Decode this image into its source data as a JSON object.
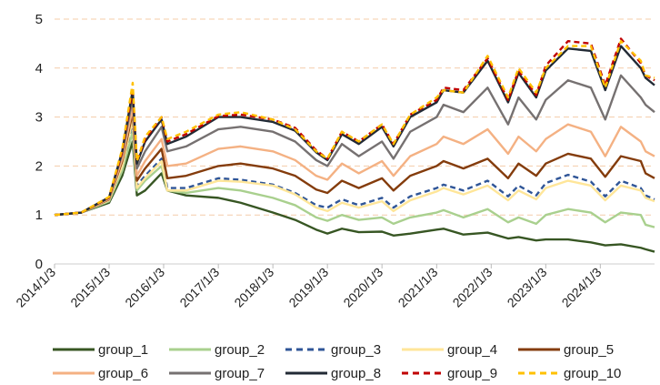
{
  "chart_data": {
    "type": "line",
    "title": "",
    "xlabel": "",
    "ylabel": "",
    "ylim": [
      0,
      5
    ],
    "yticks": [
      "0",
      "1",
      "2",
      "3",
      "4",
      "5"
    ],
    "xticks": [
      "2014/1/3",
      "2015/1/3",
      "2016/1/3",
      "2017/1/3",
      "2018/1/3",
      "2019/1/3",
      "2020/1/3",
      "2021/1/3",
      "2022/1/3",
      "2023/1/3",
      "2024/1/3"
    ],
    "gridlines": "horizontal dashed",
    "legend_position": "bottom",
    "x": [
      "2014/1/3",
      "2014/7/1",
      "2015/1/3",
      "2015/4/1",
      "2015/6/10",
      "2015/7/8",
      "2015/9/1",
      "2015/12/20",
      "2016/1/28",
      "2016/6/1",
      "2017/1/3",
      "2017/6/1",
      "2018/1/3",
      "2018/6/1",
      "2018/10/20",
      "2019/1/3",
      "2019/4/10",
      "2019/8/1",
      "2020/1/3",
      "2020/3/20",
      "2020/7/10",
      "2021/1/3",
      "2021/2/18",
      "2021/7/1",
      "2021/12/10",
      "2022/4/26",
      "2022/7/5",
      "2022/10/31",
      "2023/1/3",
      "2023/6/1",
      "2023/11/1",
      "2024/2/5",
      "2024/5/20",
      "2024/9/30",
      "2024/11/1",
      "2024/12/31"
    ],
    "series": [
      {
        "name": "group_1",
        "color": "#375623",
        "dash": "solid",
        "values": [
          1.0,
          1.05,
          1.25,
          1.8,
          2.5,
          1.4,
          1.5,
          1.85,
          1.5,
          1.4,
          1.35,
          1.25,
          1.05,
          0.9,
          0.7,
          0.62,
          0.72,
          0.65,
          0.66,
          0.58,
          0.62,
          0.7,
          0.72,
          0.6,
          0.64,
          0.52,
          0.55,
          0.48,
          0.5,
          0.5,
          0.44,
          0.38,
          0.4,
          0.33,
          0.3,
          0.25
        ]
      },
      {
        "name": "group_2",
        "color": "#A9D08E",
        "dash": "solid",
        "values": [
          1.0,
          1.05,
          1.28,
          1.9,
          2.7,
          1.5,
          1.7,
          2.0,
          1.5,
          1.45,
          1.55,
          1.5,
          1.35,
          1.2,
          0.95,
          0.88,
          1.0,
          0.9,
          0.95,
          0.82,
          0.95,
          1.05,
          1.1,
          0.95,
          1.12,
          0.85,
          0.95,
          0.82,
          1.0,
          1.12,
          1.05,
          0.85,
          1.05,
          1.0,
          0.8,
          0.75
        ]
      },
      {
        "name": "group_3",
        "color": "#2F5597",
        "dash": "dash",
        "values": [
          1.0,
          1.05,
          1.3,
          2.0,
          2.9,
          1.6,
          1.8,
          2.15,
          1.55,
          1.55,
          1.75,
          1.72,
          1.62,
          1.45,
          1.2,
          1.15,
          1.32,
          1.2,
          1.35,
          1.15,
          1.38,
          1.55,
          1.62,
          1.5,
          1.7,
          1.38,
          1.6,
          1.4,
          1.65,
          1.82,
          1.68,
          1.38,
          1.7,
          1.55,
          1.4,
          1.32
        ]
      },
      {
        "name": "group_4",
        "color": "#FFE699",
        "dash": "solid",
        "values": [
          1.0,
          1.05,
          1.3,
          2.0,
          2.95,
          1.55,
          1.75,
          2.1,
          1.5,
          1.5,
          1.7,
          1.68,
          1.6,
          1.42,
          1.15,
          1.08,
          1.25,
          1.15,
          1.28,
          1.08,
          1.3,
          1.48,
          1.55,
          1.42,
          1.6,
          1.3,
          1.5,
          1.32,
          1.55,
          1.7,
          1.6,
          1.3,
          1.6,
          1.5,
          1.35,
          1.28
        ]
      },
      {
        "name": "group_5",
        "color": "#843C0C",
        "dash": "solid",
        "values": [
          1.0,
          1.05,
          1.32,
          2.1,
          3.1,
          1.7,
          1.95,
          2.35,
          1.75,
          1.8,
          2.0,
          2.05,
          1.95,
          1.8,
          1.52,
          1.45,
          1.7,
          1.55,
          1.75,
          1.5,
          1.8,
          2.0,
          2.1,
          1.95,
          2.15,
          1.75,
          2.05,
          1.8,
          2.05,
          2.25,
          2.15,
          1.78,
          2.2,
          2.1,
          1.85,
          1.75
        ]
      },
      {
        "name": "group_6",
        "color": "#F4B183",
        "dash": "solid",
        "values": [
          1.0,
          1.05,
          1.33,
          2.15,
          3.2,
          1.8,
          2.1,
          2.55,
          2.0,
          2.05,
          2.35,
          2.4,
          2.3,
          2.12,
          1.8,
          1.72,
          2.05,
          1.85,
          2.1,
          1.8,
          2.2,
          2.45,
          2.6,
          2.45,
          2.75,
          2.25,
          2.6,
          2.3,
          2.55,
          2.85,
          2.7,
          2.2,
          2.8,
          2.5,
          2.3,
          2.2
        ]
      },
      {
        "name": "group_7",
        "color": "#767171",
        "dash": "solid",
        "values": [
          1.0,
          1.05,
          1.35,
          2.25,
          3.4,
          1.95,
          2.3,
          2.8,
          2.3,
          2.4,
          2.75,
          2.8,
          2.7,
          2.5,
          2.12,
          2.0,
          2.45,
          2.2,
          2.5,
          2.15,
          2.7,
          3.0,
          3.25,
          3.1,
          3.6,
          2.85,
          3.4,
          2.95,
          3.35,
          3.75,
          3.6,
          2.95,
          3.85,
          3.4,
          3.25,
          3.1
        ]
      },
      {
        "name": "group_8",
        "color": "#222A35",
        "dash": "solid",
        "values": [
          1.0,
          1.05,
          1.36,
          2.3,
          3.55,
          2.05,
          2.5,
          2.95,
          2.45,
          2.6,
          3.0,
          3.0,
          2.9,
          2.72,
          2.28,
          2.12,
          2.65,
          2.45,
          2.8,
          2.4,
          3.0,
          3.3,
          3.55,
          3.5,
          4.15,
          3.3,
          3.9,
          3.4,
          3.95,
          4.4,
          4.35,
          3.55,
          4.45,
          4.0,
          3.8,
          3.65
        ]
      },
      {
        "name": "group_9",
        "color": "#C00000",
        "dash": "dash",
        "values": [
          1.0,
          1.05,
          1.36,
          2.3,
          3.6,
          2.1,
          2.55,
          3.0,
          2.5,
          2.65,
          3.02,
          3.05,
          2.95,
          2.78,
          2.32,
          2.15,
          2.7,
          2.5,
          2.85,
          2.45,
          3.05,
          3.35,
          3.6,
          3.55,
          4.2,
          3.35,
          3.95,
          3.45,
          4.05,
          4.55,
          4.5,
          3.65,
          4.6,
          4.1,
          3.85,
          3.75
        ]
      },
      {
        "name": "group_10",
        "color": "#FFC000",
        "dash": "dash",
        "values": [
          1.0,
          1.05,
          1.37,
          2.35,
          3.7,
          2.1,
          2.6,
          3.0,
          2.55,
          2.7,
          3.05,
          3.1,
          2.95,
          2.75,
          2.3,
          2.15,
          2.7,
          2.5,
          2.85,
          2.45,
          3.05,
          3.4,
          3.55,
          3.5,
          4.25,
          3.4,
          4.0,
          3.5,
          4.0,
          4.45,
          4.45,
          3.6,
          4.55,
          4.15,
          3.85,
          3.8
        ]
      }
    ]
  }
}
